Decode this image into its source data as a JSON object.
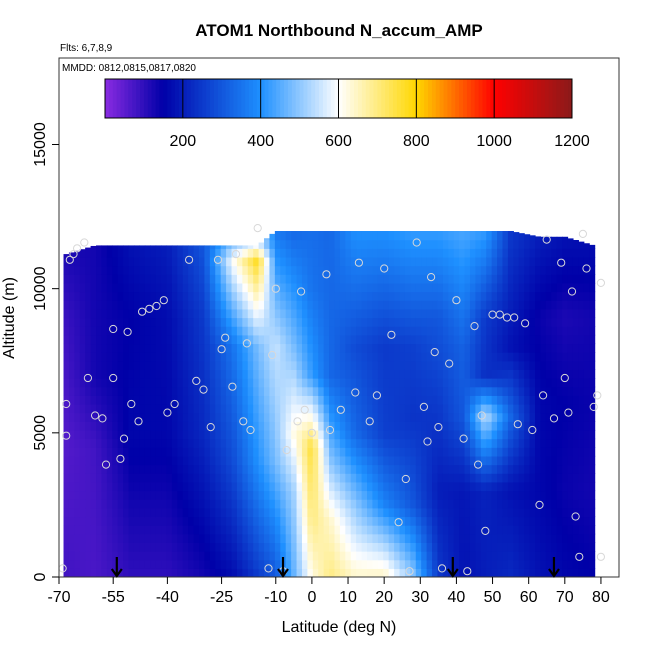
{
  "chart_data": {
    "type": "heatmap",
    "title": "ATOM1 Northbound N_accum_AMP",
    "flights_note": "Flts: 6,7,8,9",
    "dates_note": "MMDD: 0812,0815,0817,0820",
    "xlabel": "Latitude (deg N)",
    "ylabel": "Altitude (m)",
    "xlim": [
      -70,
      85
    ],
    "ylim": [
      0,
      18000
    ],
    "x_ticks": [
      -70,
      -55,
      -40,
      -25,
      -10,
      0,
      10,
      20,
      30,
      40,
      50,
      60,
      70,
      80
    ],
    "y_ticks": [
      0,
      5000,
      10000,
      15000
    ],
    "colorbar": {
      "range": [
        0,
        1200
      ],
      "ticks": [
        200,
        400,
        600,
        800,
        1000,
        1200
      ],
      "stops": [
        "#8a2be2",
        "#0000a8",
        "#1e90ff",
        "#ffffff",
        "#ffd700",
        "#ff0000",
        "#8b1a1a"
      ],
      "stop_values": [
        0,
        150,
        400,
        600,
        800,
        1000,
        1200
      ]
    },
    "arrow_latitudes": [
      -54,
      -8,
      39,
      67
    ],
    "field_columns": [
      {
        "lat": -68,
        "top": 11200,
        "profile": [
          [
            0,
            80
          ],
          [
            4500,
            60
          ],
          [
            9000,
            90
          ],
          [
            11200,
            120
          ]
        ]
      },
      {
        "lat": -60,
        "top": 11500,
        "profile": [
          [
            0,
            70
          ],
          [
            4500,
            80
          ],
          [
            7000,
            130
          ],
          [
            11500,
            130
          ]
        ]
      },
      {
        "lat": -50,
        "top": 11500,
        "profile": [
          [
            0,
            100
          ],
          [
            5000,
            160
          ],
          [
            9000,
            150
          ],
          [
            11500,
            180
          ]
        ]
      },
      {
        "lat": -40,
        "top": 11500,
        "profile": [
          [
            0,
            100
          ],
          [
            5000,
            160
          ],
          [
            9000,
            170
          ],
          [
            11500,
            200
          ]
        ]
      },
      {
        "lat": -30,
        "top": 11500,
        "profile": [
          [
            0,
            130
          ],
          [
            5000,
            220
          ],
          [
            9000,
            250
          ],
          [
            11500,
            300
          ]
        ]
      },
      {
        "lat": -22,
        "top": 11500,
        "profile": [
          [
            0,
            170
          ],
          [
            4000,
            280
          ],
          [
            8000,
            350
          ],
          [
            11000,
            600
          ],
          [
            11500,
            500
          ]
        ]
      },
      {
        "lat": -15,
        "top": 11500,
        "profile": [
          [
            0,
            250
          ],
          [
            4000,
            400
          ],
          [
            8000,
            480
          ],
          [
            11000,
            780
          ],
          [
            11500,
            600
          ]
        ]
      },
      {
        "lat": -10,
        "top": 12000,
        "profile": [
          [
            0,
            300
          ],
          [
            4000,
            480
          ],
          [
            8000,
            550
          ],
          [
            10500,
            430
          ],
          [
            12000,
            360
          ]
        ]
      },
      {
        "lat": -5,
        "top": 12000,
        "profile": [
          [
            0,
            460
          ],
          [
            3000,
            520
          ],
          [
            5000,
            620
          ],
          [
            8000,
            480
          ],
          [
            12000,
            330
          ]
        ]
      },
      {
        "lat": 0,
        "top": 12000,
        "profile": [
          [
            0,
            620
          ],
          [
            2000,
            700
          ],
          [
            4500,
            760
          ],
          [
            7000,
            420
          ],
          [
            10000,
            350
          ],
          [
            12000,
            340
          ]
        ]
      },
      {
        "lat": 5,
        "top": 12000,
        "profile": [
          [
            0,
            700
          ],
          [
            2000,
            640
          ],
          [
            4000,
            500
          ],
          [
            7000,
            330
          ],
          [
            12000,
            330
          ]
        ]
      },
      {
        "lat": 12,
        "top": 12000,
        "profile": [
          [
            0,
            640
          ],
          [
            2500,
            500
          ],
          [
            5000,
            330
          ],
          [
            8000,
            280
          ],
          [
            12000,
            400
          ]
        ]
      },
      {
        "lat": 20,
        "top": 12000,
        "profile": [
          [
            0,
            650
          ],
          [
            2500,
            380
          ],
          [
            5000,
            260
          ],
          [
            8000,
            250
          ],
          [
            12000,
            400
          ]
        ]
      },
      {
        "lat": 28,
        "top": 12000,
        "profile": [
          [
            0,
            500
          ],
          [
            2500,
            300
          ],
          [
            5500,
            240
          ],
          [
            8000,
            260
          ],
          [
            12000,
            420
          ]
        ]
      },
      {
        "lat": 35,
        "top": 12000,
        "profile": [
          [
            0,
            250
          ],
          [
            3000,
            200
          ],
          [
            6000,
            250
          ],
          [
            9000,
            300
          ],
          [
            12000,
            420
          ]
        ]
      },
      {
        "lat": 42,
        "top": 12000,
        "profile": [
          [
            0,
            180
          ],
          [
            3000,
            190
          ],
          [
            5500,
            300
          ],
          [
            8000,
            320
          ],
          [
            12000,
            440
          ]
        ]
      },
      {
        "lat": 48,
        "top": 12000,
        "profile": [
          [
            0,
            200
          ],
          [
            3000,
            210
          ],
          [
            5600,
            540
          ],
          [
            7000,
            230
          ],
          [
            9000,
            250
          ],
          [
            12000,
            420
          ]
        ]
      },
      {
        "lat": 55,
        "top": 12000,
        "profile": [
          [
            0,
            220
          ],
          [
            3000,
            180
          ],
          [
            5600,
            330
          ],
          [
            8000,
            180
          ],
          [
            12000,
            250
          ]
        ]
      },
      {
        "lat": 63,
        "top": 11800,
        "profile": [
          [
            0,
            180
          ],
          [
            3000,
            160
          ],
          [
            6000,
            160
          ],
          [
            9000,
            140
          ],
          [
            11800,
            200
          ]
        ]
      },
      {
        "lat": 70,
        "top": 11800,
        "profile": [
          [
            0,
            160
          ],
          [
            3000,
            140
          ],
          [
            6000,
            150
          ],
          [
            9000,
            120
          ],
          [
            11800,
            180
          ]
        ]
      },
      {
        "lat": 78,
        "top": 11500,
        "profile": [
          [
            0,
            150
          ],
          [
            3000,
            130
          ],
          [
            6000,
            140
          ],
          [
            9000,
            130
          ],
          [
            11500,
            170
          ]
        ]
      }
    ],
    "sample_points": [
      [
        -69,
        300
      ],
      [
        -68,
        4900
      ],
      [
        -68,
        6000
      ],
      [
        -67,
        11000
      ],
      [
        -66,
        11200
      ],
      [
        -65,
        11400
      ],
      [
        -63,
        11600
      ],
      [
        -62,
        6900
      ],
      [
        -60,
        5600
      ],
      [
        -58,
        5500
      ],
      [
        -57,
        3900
      ],
      [
        -55,
        6900
      ],
      [
        -55,
        8600
      ],
      [
        -53,
        4100
      ],
      [
        -52,
        4800
      ],
      [
        -51,
        8500
      ],
      [
        -50,
        6000
      ],
      [
        -48,
        5400
      ],
      [
        -47,
        9200
      ],
      [
        -45,
        9300
      ],
      [
        -43,
        9400
      ],
      [
        -41,
        9600
      ],
      [
        -40,
        5700
      ],
      [
        -38,
        6000
      ],
      [
        -34,
        11000
      ],
      [
        -32,
        6800
      ],
      [
        -30,
        6500
      ],
      [
        -28,
        5200
      ],
      [
        -26,
        11000
      ],
      [
        -25,
        7900
      ],
      [
        -24,
        8300
      ],
      [
        -22,
        6600
      ],
      [
        -21,
        11200
      ],
      [
        -19,
        5400
      ],
      [
        -18,
        8100
      ],
      [
        -17,
        5100
      ],
      [
        -15,
        12100
      ],
      [
        -12,
        300
      ],
      [
        -11,
        7700
      ],
      [
        -10,
        10000
      ],
      [
        -8,
        200
      ],
      [
        -7,
        4400
      ],
      [
        -4,
        5400
      ],
      [
        -3,
        9900
      ],
      [
        -2,
        5800
      ],
      [
        0,
        5000
      ],
      [
        4,
        10500
      ],
      [
        5,
        5100
      ],
      [
        8,
        5800
      ],
      [
        12,
        6400
      ],
      [
        13,
        10900
      ],
      [
        16,
        5400
      ],
      [
        18,
        6300
      ],
      [
        20,
        10700
      ],
      [
        22,
        8400
      ],
      [
        24,
        1900
      ],
      [
        26,
        3400
      ],
      [
        27,
        200
      ],
      [
        29,
        11600
      ],
      [
        31,
        5900
      ],
      [
        32,
        4700
      ],
      [
        33,
        10400
      ],
      [
        34,
        7800
      ],
      [
        35,
        5200
      ],
      [
        36,
        300
      ],
      [
        38,
        7400
      ],
      [
        40,
        9600
      ],
      [
        42,
        4800
      ],
      [
        43,
        200
      ],
      [
        45,
        8700
      ],
      [
        46,
        3900
      ],
      [
        47,
        5600
      ],
      [
        48,
        1600
      ],
      [
        50,
        9100
      ],
      [
        52,
        9100
      ],
      [
        54,
        9000
      ],
      [
        56,
        9000
      ],
      [
        57,
        5300
      ],
      [
        59,
        8800
      ],
      [
        61,
        5100
      ],
      [
        63,
        2500
      ],
      [
        64,
        6300
      ],
      [
        65,
        11700
      ],
      [
        67,
        5500
      ],
      [
        69,
        10900
      ],
      [
        70,
        6900
      ],
      [
        71,
        5700
      ],
      [
        72,
        9900
      ],
      [
        73,
        2100
      ],
      [
        74,
        700
      ],
      [
        75,
        11900
      ],
      [
        76,
        10700
      ],
      [
        78,
        5900
      ],
      [
        79,
        6300
      ],
      [
        80,
        700
      ],
      [
        80,
        10200
      ]
    ]
  }
}
